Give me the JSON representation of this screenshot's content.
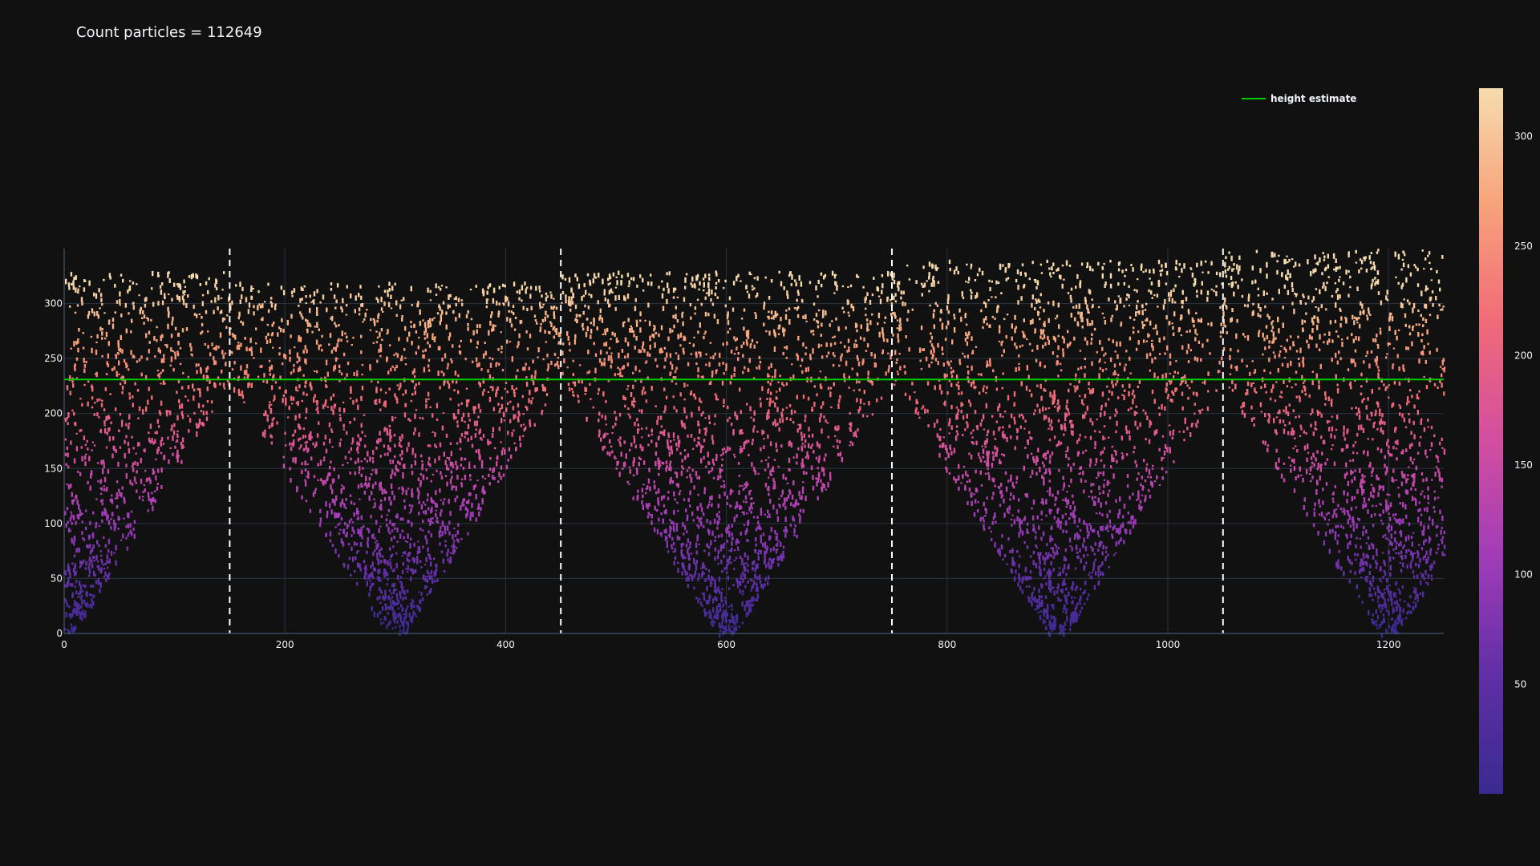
{
  "title": "Count particles = 112649",
  "chart_data": {
    "type": "scatter",
    "title": "Count particles = 112649",
    "xlabel": "",
    "ylabel": "",
    "xlim": [
      0,
      1250
    ],
    "ylim": [
      0,
      350
    ],
    "x_ticks": [
      0,
      200,
      400,
      600,
      800,
      1000,
      1200
    ],
    "y_ticks": [
      0,
      50,
      100,
      150,
      200,
      250,
      300
    ],
    "grid": true,
    "seeds_x": [
      0,
      300,
      600,
      900,
      1200
    ],
    "boundary_lines_x": [
      150,
      450,
      750,
      1050
    ],
    "boundary_line_style": "dashed white",
    "height_estimate": {
      "name": "height estimate",
      "y": 231,
      "color": "#00cc00"
    },
    "colorbar": {
      "ticks": [
        50,
        100,
        150,
        200,
        250,
        300
      ],
      "range": [
        0,
        322
      ],
      "colorscale": [
        "#3a2a8f",
        "#5f2fa5",
        "#a03cb8",
        "#d24ea0",
        "#f06a78",
        "#f7a27a",
        "#f6dcae"
      ]
    },
    "legend_position": "top-right",
    "count_particles": 112649
  }
}
